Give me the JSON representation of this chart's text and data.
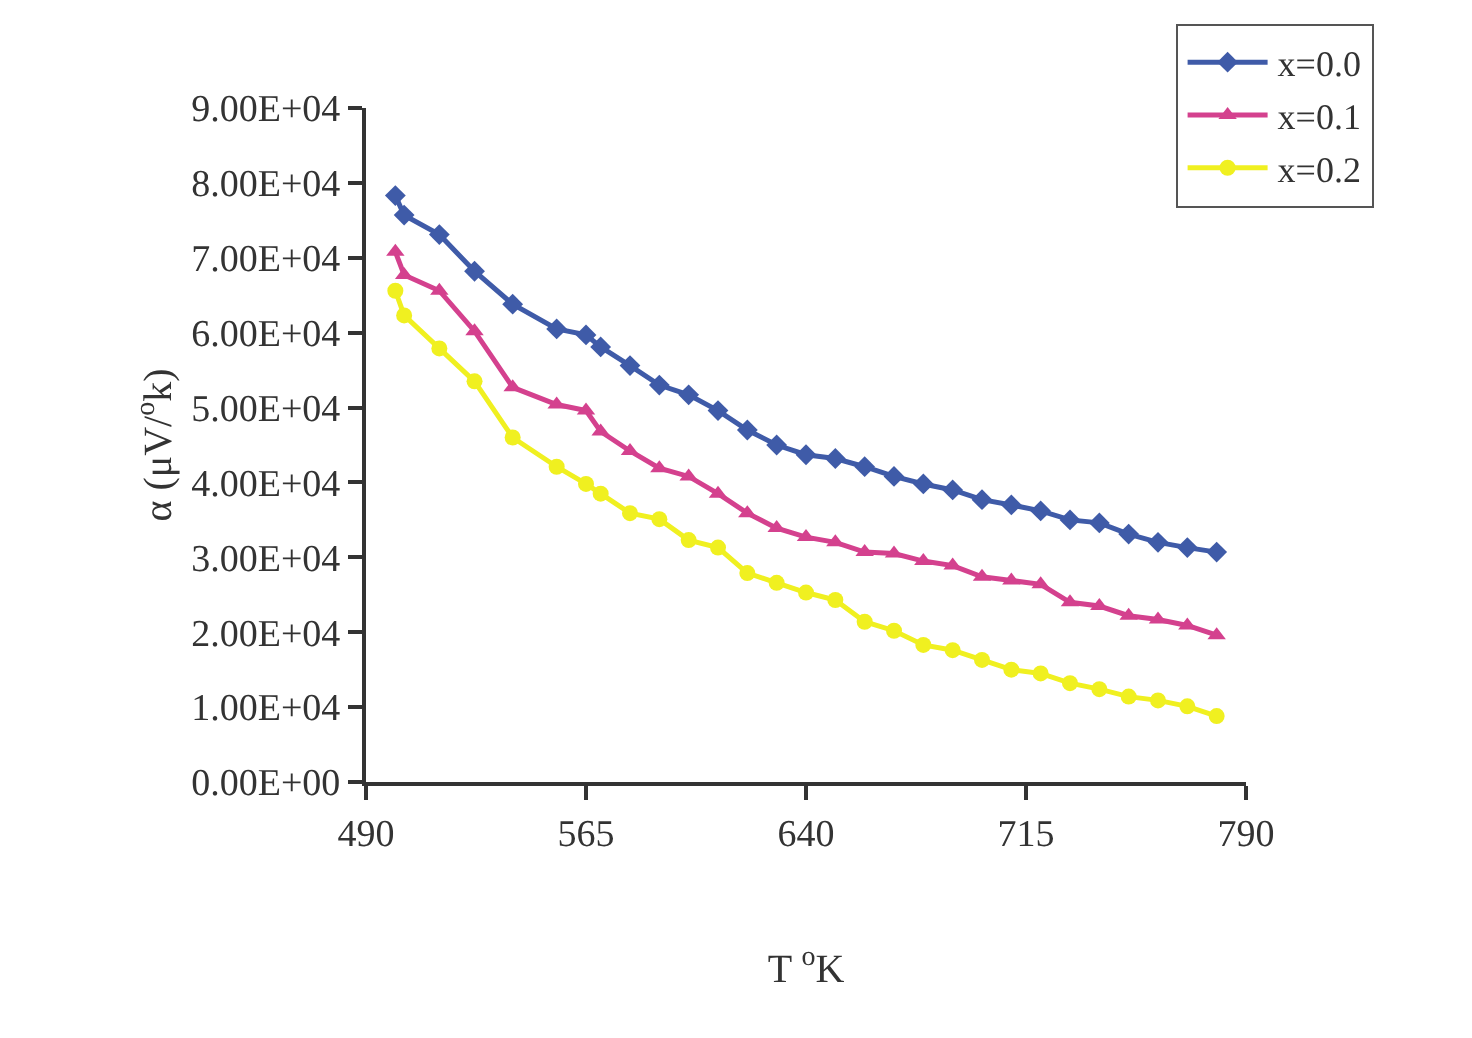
{
  "chart_data": {
    "type": "line",
    "xlabel": "T $^{o}$K",
    "ylabel": "α (μV/$^{o}$k)",
    "x": [
      500,
      503,
      515,
      527,
      540,
      555,
      565,
      570,
      580,
      590,
      600,
      610,
      620,
      630,
      640,
      650,
      660,
      670,
      680,
      690,
      700,
      710,
      720,
      730,
      740,
      750,
      760,
      770,
      780
    ],
    "series": [
      {
        "name": "x=0.0",
        "color": "#3f5ba8",
        "marker": "diamond",
        "values": [
          78300,
          75700,
          73100,
          68200,
          63800,
          60500,
          59700,
          58100,
          55600,
          53000,
          51700,
          49600,
          47000,
          45000,
          43700,
          43200,
          42100,
          40800,
          39800,
          39000,
          37700,
          37000,
          36200,
          35000,
          34600,
          33100,
          32000,
          31300,
          30700
        ]
      },
      {
        "name": "x=0.1",
        "color": "#d4418e",
        "marker": "triangle",
        "values": [
          70800,
          67700,
          65600,
          60200,
          52700,
          50400,
          49600,
          46800,
          44200,
          41900,
          40800,
          38500,
          35900,
          33900,
          32700,
          32000,
          30700,
          30500,
          29500,
          28900,
          27400,
          26900,
          26400,
          24000,
          23500,
          22200,
          21700,
          20900,
          19600
        ]
      },
      {
        "name": "x=0.2",
        "color": "#f0f020",
        "marker": "circle",
        "values": [
          65600,
          62300,
          57900,
          53500,
          46000,
          42100,
          39800,
          38500,
          35900,
          35100,
          32300,
          31300,
          27900,
          26600,
          25300,
          24300,
          21400,
          20200,
          18300,
          17600,
          16300,
          15000,
          14500,
          13200,
          12400,
          11400,
          10900,
          10100,
          8800
        ]
      }
    ],
    "xlim": [
      490,
      790
    ],
    "xticks": [
      490,
      565,
      640,
      715,
      790
    ],
    "ylim": [
      0,
      90000
    ],
    "yticks": [
      {
        "value": 0,
        "label": "0.00E+00"
      },
      {
        "value": 10000,
        "label": "1.00E+04"
      },
      {
        "value": 20000,
        "label": "2.00E+04"
      },
      {
        "value": 30000,
        "label": "3.00E+04"
      },
      {
        "value": 40000,
        "label": "4.00E+04"
      },
      {
        "value": 50000,
        "label": "5.00E+04"
      },
      {
        "value": 60000,
        "label": "6.00E+04"
      },
      {
        "value": 70000,
        "label": "7.00E+04"
      },
      {
        "value": 80000,
        "label": "8.00E+04"
      },
      {
        "value": 90000,
        "label": "9.00E+04"
      }
    ],
    "legend": "top right",
    "line_style": "solid"
  }
}
